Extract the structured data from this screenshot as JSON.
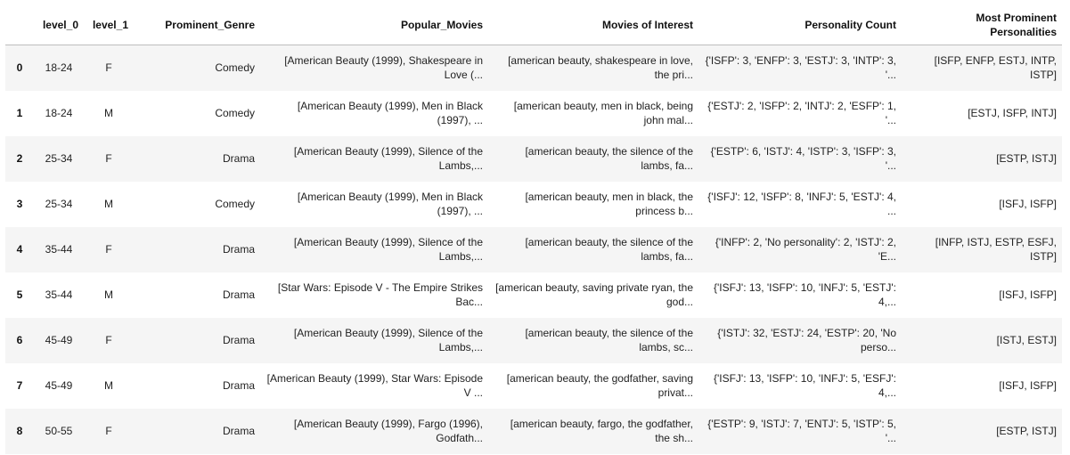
{
  "table": {
    "columns": [
      "",
      "level_0",
      "level_1",
      "Prominent_Genre",
      "Popular_Movies",
      "Movies of Interest",
      "Personality Count",
      "Most Prominent Personalities"
    ],
    "rows": [
      {
        "index": "0",
        "level_0": "18-24",
        "level_1": "F",
        "genre": "Comedy",
        "popular": "[American Beauty (1999), Shakespeare in Love (...",
        "interest": "[american beauty, shakespeare in love, the pri...",
        "personality_count": "{'ISFP': 3, 'ENFP': 3, 'ESTJ': 3, 'INTP': 3, '...",
        "prominent": "[ISFP, ENFP, ESTJ, INTP, ISTP]"
      },
      {
        "index": "1",
        "level_0": "18-24",
        "level_1": "M",
        "genre": "Comedy",
        "popular": "[American Beauty (1999), Men in Black (1997), ...",
        "interest": "[american beauty, men in black, being john mal...",
        "personality_count": "{'ESTJ': 2, 'ISFP': 2, 'INTJ': 2, 'ESFP': 1, '...",
        "prominent": "[ESTJ, ISFP, INTJ]"
      },
      {
        "index": "2",
        "level_0": "25-34",
        "level_1": "F",
        "genre": "Drama",
        "popular": "[American Beauty (1999), Silence of the Lambs,...",
        "interest": "[american beauty, the silence of the lambs, fa...",
        "personality_count": "{'ESTP': 6, 'ISTJ': 4, 'ISTP': 3, 'ISFP': 3, '...",
        "prominent": "[ESTP, ISTJ]"
      },
      {
        "index": "3",
        "level_0": "25-34",
        "level_1": "M",
        "genre": "Comedy",
        "popular": "[American Beauty (1999), Men in Black (1997), ...",
        "interest": "[american beauty, men in black, the princess b...",
        "personality_count": "{'ISFJ': 12, 'ISFP': 8, 'INFJ': 5, 'ESTJ': 4, ...",
        "prominent": "[ISFJ, ISFP]"
      },
      {
        "index": "4",
        "level_0": "35-44",
        "level_1": "F",
        "genre": "Drama",
        "popular": "[American Beauty (1999), Silence of the Lambs,...",
        "interest": "[american beauty, the silence of the lambs, fa...",
        "personality_count": "{'INFP': 2, 'No personality': 2, 'ISTJ': 2, 'E...",
        "prominent": "[INFP, ISTJ, ESTP, ESFJ, ISTP]"
      },
      {
        "index": "5",
        "level_0": "35-44",
        "level_1": "M",
        "genre": "Drama",
        "popular": "[Star Wars: Episode V - The Empire Strikes Bac...",
        "interest": "[american beauty, saving private ryan, the god...",
        "personality_count": "{'ISFJ': 13, 'ISFP': 10, 'INFJ': 5, 'ESTJ': 4,...",
        "prominent": "[ISFJ, ISFP]"
      },
      {
        "index": "6",
        "level_0": "45-49",
        "level_1": "F",
        "genre": "Drama",
        "popular": "[American Beauty (1999), Silence of the Lambs,...",
        "interest": "[american beauty, the silence of the lambs, sc...",
        "personality_count": "{'ISTJ': 32, 'ESTJ': 24, 'ESTP': 20, 'No perso...",
        "prominent": "[ISTJ, ESTJ]"
      },
      {
        "index": "7",
        "level_0": "45-49",
        "level_1": "M",
        "genre": "Drama",
        "popular": "[American Beauty (1999), Star Wars: Episode V ...",
        "interest": "[american beauty, the godfather, saving privat...",
        "personality_count": "{'ISFJ': 13, 'ISFP': 10, 'INFJ': 5, 'ESFJ': 4,...",
        "prominent": "[ISFJ, ISFP]"
      },
      {
        "index": "8",
        "level_0": "50-55",
        "level_1": "F",
        "genre": "Drama",
        "popular": "[American Beauty (1999), Fargo (1996), Godfath...",
        "interest": "[american beauty, fargo, the godfather, the sh...",
        "personality_count": "{'ESTP': 9, 'ISTJ': 7, 'ENTJ': 5, 'ISTP': 5, '...",
        "prominent": "[ESTP, ISTJ]"
      }
    ]
  }
}
